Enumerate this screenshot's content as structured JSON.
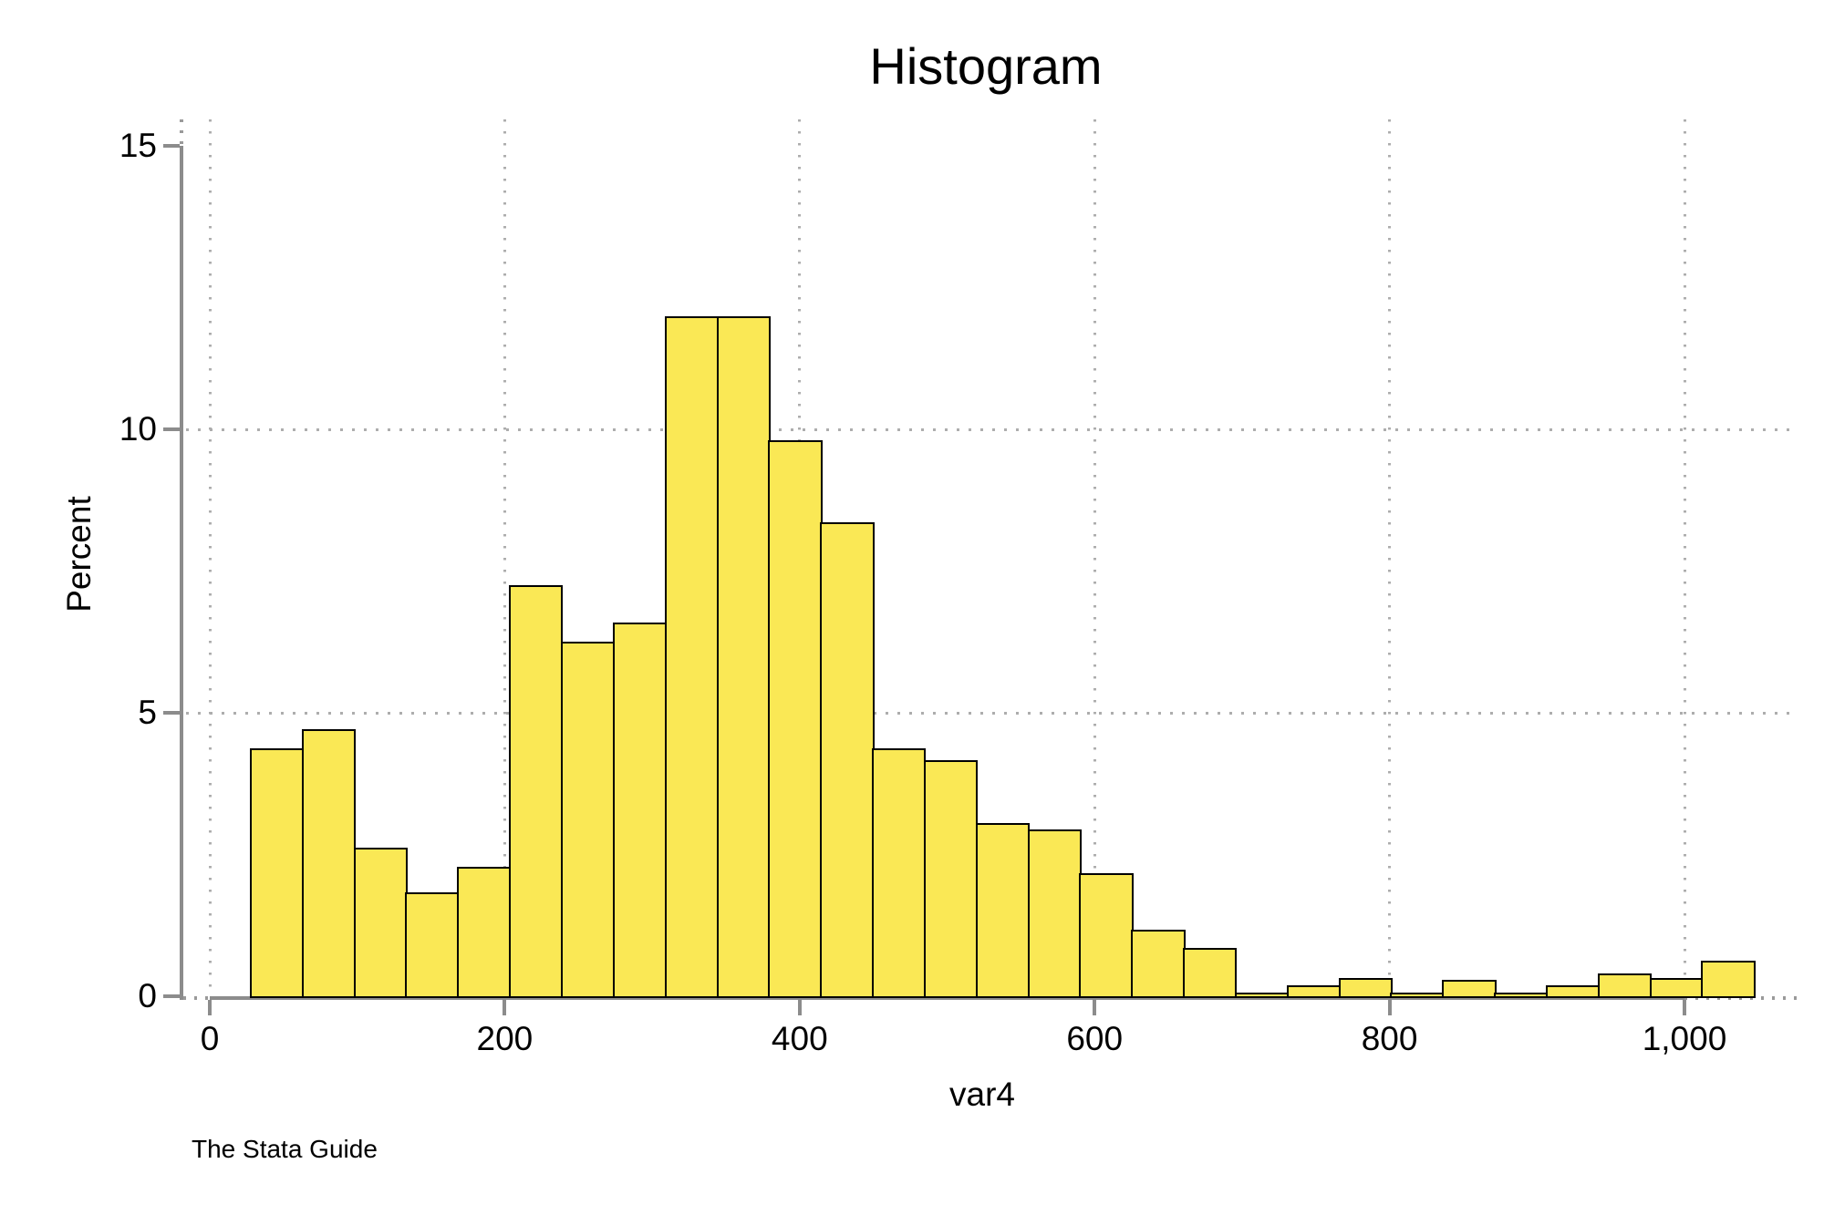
{
  "title": "Histogram",
  "caption": "The Stata Guide",
  "y_axis": {
    "label": "Percent",
    "ticks": [
      0,
      5,
      10,
      15
    ],
    "tick_labels": [
      "0",
      "5",
      "10",
      "15"
    ]
  },
  "x_axis": {
    "label": "var4",
    "ticks": [
      0,
      200,
      400,
      600,
      800,
      1000
    ],
    "tick_labels": [
      "0",
      "200",
      "400",
      "600",
      "800",
      "1,000"
    ]
  },
  "colors": {
    "bar_fill": "#FAE855",
    "bar_border": "#000000",
    "axis": "#8C8C8C",
    "gridline": "#ADADAD",
    "text": "#000000",
    "background": "#FFFFFF"
  },
  "chart_data": {
    "type": "bar",
    "title": "Histogram",
    "xlabel": "var4",
    "ylabel": "Percent",
    "legend": "none",
    "grid": "dotted; horizontal gridlines at 5 and 10, vertical gridlines at every x tick",
    "bins": {
      "start": 27.2,
      "width": 35.15,
      "count": 29
    },
    "values": [
      4.38,
      4.71,
      2.62,
      1.83,
      2.28,
      7.25,
      6.25,
      6.59,
      12.0,
      12.0,
      9.8,
      8.36,
      4.37,
      4.16,
      3.05,
      2.94,
      2.17,
      1.17,
      0.85,
      0.06,
      0.19,
      0.32,
      0.06,
      0.29,
      0.06,
      0.19,
      0.4,
      0.32,
      0.63
    ],
    "x_ticks": [
      0,
      200,
      400,
      600,
      800,
      1000
    ],
    "x_tick_labels": [
      "0",
      "200",
      "400",
      "600",
      "800",
      "1,000"
    ],
    "y_ticks": [
      0,
      5,
      10,
      15
    ],
    "y_gridlines": [
      5,
      10
    ],
    "x_gridlines": [
      0,
      200,
      400,
      600,
      800,
      1000
    ],
    "xlim": [
      -18,
      1076
    ],
    "ylim": [
      0,
      15.45
    ]
  }
}
